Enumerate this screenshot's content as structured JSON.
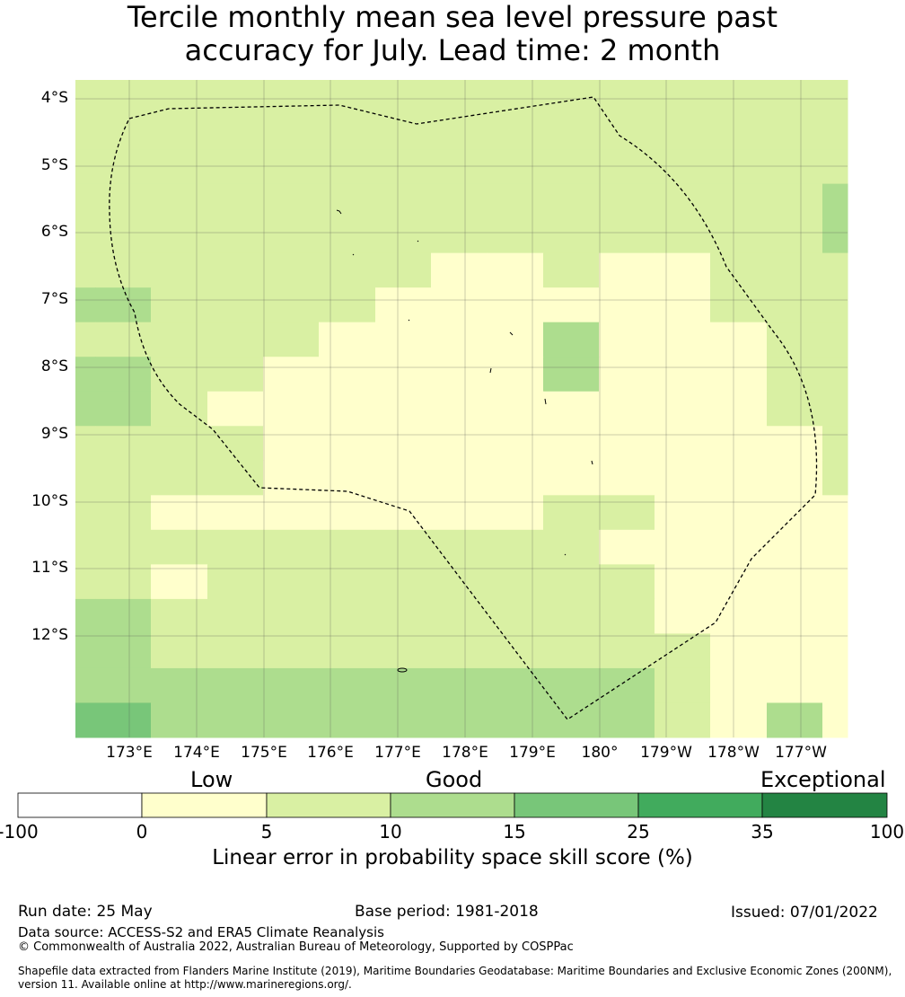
{
  "title": {
    "line1": "Tercile monthly mean sea level pressure past",
    "line2": "accuracy for July. Lead time: 2 month"
  },
  "map": {
    "lat_labels": [
      "4°S",
      "5°S",
      "6°S",
      "7°S",
      "8°S",
      "9°S",
      "10°S",
      "11°S",
      "12°S"
    ],
    "lon_labels": [
      "173°E",
      "174°E",
      "175°E",
      "176°E",
      "177°E",
      "178°E",
      "179°E",
      "180°",
      "179°W",
      "178°W",
      "177°W"
    ],
    "colors": {
      "0-5": "#ffffcc",
      "5-10": "#d9f0a3",
      "10-15": "#addd8e",
      "15-25": "#78c679",
      "25-35": "#41ab5d",
      "35-100": "#238443"
    },
    "grid_rows": [
      "BBBBBBBBBBBBBB",
      "BBBBBBBBBBBBBB",
      "BBBBBBBBBBBBBB",
      "BBBBBBBBBBBBBC",
      "BBBBBBBBBBBBBC",
      "BBBBBBAABAABBB",
      "CBBBBAAAAAABBB",
      "BBBBAAAACAAABB",
      "CBBAAAAACAAABB",
      "CBAAAAAAAAAABB",
      "BBBAAAAAAAAAAB",
      "BBBAAAAAAAAAAB",
      "BAAAAAAABBAAAA",
      "BBBBBBBBBAAAAA",
      "BABBBBBBBBAAAA",
      "CBBBBBBBBBAAAA",
      "CBBBBBBBBBBAAA",
      "CCCCCCCCCCBAAA",
      "DCCCCCCCCCBACA"
    ]
  },
  "colorbar": {
    "categories": [
      "Low",
      "Good",
      "Exceptional"
    ],
    "ticks": [
      "-100",
      "0",
      "5",
      "10",
      "15",
      "25",
      "35",
      "100"
    ],
    "colors": [
      "#ffffff",
      "#ffffcc",
      "#d9f0a3",
      "#addd8e",
      "#78c679",
      "#41ab5d",
      "#238443"
    ],
    "label": "Linear error in probability space skill score (%)"
  },
  "footer": {
    "run_date": "Run date: 25 May",
    "base_period": "Base period: 1981-2018",
    "issued": "Issued: 07/01/2022",
    "data_source": "Data source: ACCESS-S2 and ERA5 Climate Reanalysis",
    "copyright": "© Commonwealth of Australia 2022, Australian Bureau of Meteorology, Supported by COSPPac",
    "shapefile_line1": "Shapefile data extracted from Flanders Marine Institute (2019), Maritime Boundaries Geodatabase: Maritime Boundaries and Exclusive Economic Zones (200NM),",
    "shapefile_line2": "version 11. Available online at http://www.marineregions.org/."
  }
}
